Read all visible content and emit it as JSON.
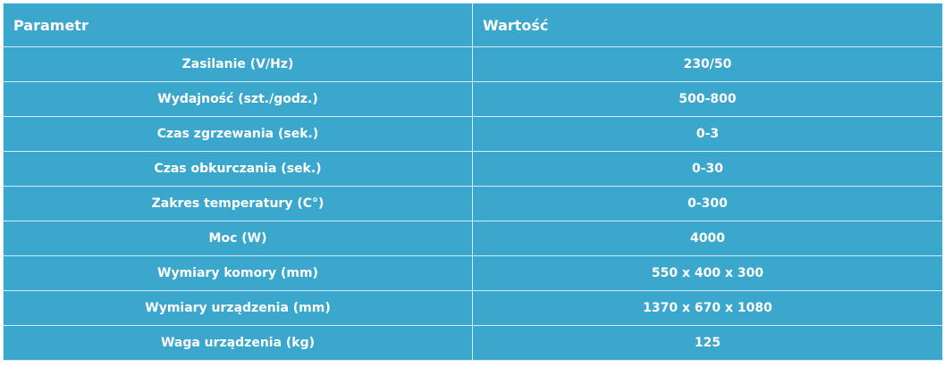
{
  "table": {
    "headers": {
      "parameter": "Parametr",
      "value": "Wartość"
    },
    "rows": [
      {
        "parameter": "Zasilanie (V/Hz)",
        "value": "230/50"
      },
      {
        "parameter": "Wydajność (szt./godz.)",
        "value": "500-800"
      },
      {
        "parameter": "Czas zgrzewania (sek.)",
        "value": "0-3"
      },
      {
        "parameter": "Czas obkurczania (sek.)",
        "value": "0-30"
      },
      {
        "parameter": "Zakres temperatury (C°)",
        "value": "0-300"
      },
      {
        "parameter": "Moc (W)",
        "value": "4000"
      },
      {
        "parameter": "Wymiary komory (mm)",
        "value": "550 x 400 x 300"
      },
      {
        "parameter": "Wymiary urządzenia (mm)",
        "value": "1370 x 670 x 1080"
      },
      {
        "parameter": "Waga urządzenia (kg)",
        "value": "125"
      }
    ]
  },
  "colors": {
    "background": "#3ba7cc",
    "border": "#d4ecf5",
    "text": "#ffffff"
  }
}
